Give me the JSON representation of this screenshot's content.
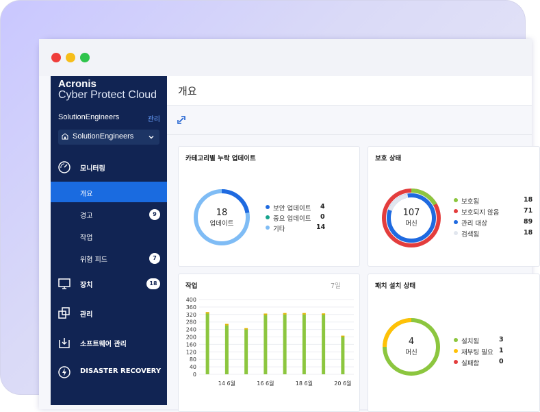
{
  "colors": {
    "sidebar_bg": "#112453",
    "accent": "#1a6be0",
    "green": "#8cc63f",
    "red": "#e33d3d",
    "blue": "#1f6ae0",
    "light_blue": "#7fbcf5",
    "teal": "#16a38c",
    "gray": "#e1e6ee",
    "yellow": "#ffc107"
  },
  "window": {
    "controls": [
      "close",
      "minimize",
      "maximize"
    ]
  },
  "sidebar": {
    "brand_line1": "Acronis",
    "brand_line2": "Cyber Protect Cloud",
    "tenant_name": "SolutionEngineers",
    "manage_label": "관리",
    "tenant_select": "SolutionEngineers",
    "sections": {
      "monitoring": {
        "label": "모니터링",
        "icon": "gauge-icon"
      },
      "devices": {
        "label": "장치",
        "icon": "monitor-icon",
        "badge": "18"
      },
      "management": {
        "label": "관리",
        "icon": "copy-icon"
      },
      "software": {
        "label": "소프트웨어 관리",
        "icon": "download-box-icon"
      },
      "disaster": {
        "label": "DISASTER RECOVERY",
        "icon": "lightning-icon"
      }
    },
    "sub_items": {
      "overview": {
        "label": "개요"
      },
      "alerts": {
        "label": "경고",
        "badge": "9"
      },
      "activities": {
        "label": "작업"
      },
      "threat_feed": {
        "label": "위협 피드",
        "badge": "7"
      }
    }
  },
  "main": {
    "page_title": "개요",
    "toolbar_icon": "expand-icon",
    "updates_card": {
      "title": "카테고리별 누락 업데이트",
      "center_value": "18",
      "center_label": "업데이트",
      "legend": [
        {
          "label": "보안 업데이트",
          "value": "4",
          "color": "#1f6ae0"
        },
        {
          "label": "중요 업데이트",
          "value": "0",
          "color": "#16a38c"
        },
        {
          "label": "기타",
          "value": "14",
          "color": "#7fbcf5"
        }
      ]
    },
    "protection_card": {
      "title": "보호 상태",
      "center_value": "107",
      "center_label": "머신",
      "legend": [
        {
          "label": "보호됨",
          "value": "18",
          "color": "#8cc63f"
        },
        {
          "label": "보호되지 않음",
          "value": "71",
          "color": "#e33d3d"
        },
        {
          "label": "관리 대상",
          "value": "89",
          "color": "#1f6ae0"
        },
        {
          "label": "검색됨",
          "value": "18",
          "color": "#e1e6ee"
        }
      ]
    },
    "activities_card": {
      "title": "작업",
      "period": "7일"
    },
    "patch_card": {
      "title": "패치 설치 상태",
      "center_value": "4",
      "center_label": "머신",
      "legend": [
        {
          "label": "설치됨",
          "value": "3",
          "color": "#8cc63f"
        },
        {
          "label": "재부팅 필요",
          "value": "1",
          "color": "#ffc107"
        },
        {
          "label": "실패함",
          "value": "0",
          "color": "#e33d3d"
        }
      ]
    }
  },
  "chart_data": {
    "type": "bar",
    "title": "작업",
    "categories": [
      "",
      "",
      "",
      "",
      "",
      "",
      "",
      ""
    ],
    "x_tick_labels": [
      "14 6월",
      "16 6월",
      "18 6월",
      "20 6월"
    ],
    "y_ticks": [
      "400",
      "360",
      "320",
      "280",
      "240",
      "200",
      "160",
      "120",
      "80",
      "40",
      "0"
    ],
    "ylim": [
      0,
      400
    ],
    "grid": true,
    "series": [
      {
        "values": [
          325,
          262,
          240,
          317,
          320,
          320,
          319,
          200
        ],
        "color": "#8cc63f"
      },
      {
        "values": [
          8,
          8,
          7,
          8,
          8,
          8,
          7,
          7
        ],
        "color": "#e0b400"
      }
    ]
  }
}
